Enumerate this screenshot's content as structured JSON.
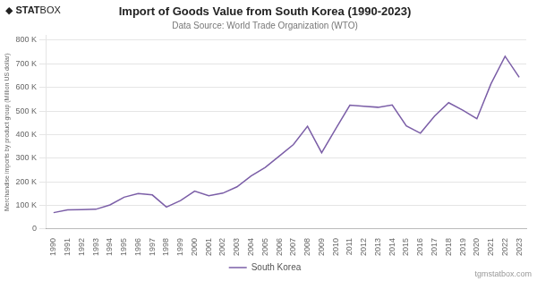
{
  "chart_data": {
    "type": "line",
    "title": "Import of Goods Value from South Korea (1990-2023)",
    "subtitle": "Data Source: World Trade Organization (WTO)",
    "ylabel": "Merchandise imports by product group (Million US dollar)",
    "annotations": [
      "◆",
      "STAT",
      "BOX",
      "tgmstatbox.com"
    ],
    "x": [
      1990,
      1991,
      1992,
      1993,
      1994,
      1995,
      1996,
      1997,
      1998,
      1999,
      2000,
      2001,
      2002,
      2003,
      2004,
      2005,
      2006,
      2007,
      2008,
      2009,
      2010,
      2011,
      2012,
      2013,
      2014,
      2015,
      2016,
      2017,
      2018,
      2019,
      2020,
      2021,
      2022,
      2023
    ],
    "xlim": [
      1989.5,
      2023.5
    ],
    "xticks": [
      1990,
      1991,
      1992,
      1993,
      1994,
      1995,
      1996,
      1997,
      1998,
      1999,
      2000,
      2001,
      2002,
      2003,
      2004,
      2005,
      2006,
      2007,
      2008,
      2009,
      2010,
      2011,
      2012,
      2013,
      2014,
      2015,
      2016,
      2017,
      2018,
      2019,
      2020,
      2021,
      2022,
      2023
    ],
    "series": [
      {
        "name": "South Korea",
        "color": "#7b5ea7",
        "values": [
          69600,
          81400,
          82000,
          83800,
          102300,
          135100,
          150300,
          144600,
          93300,
          120600,
          160500,
          141100,
          152100,
          178800,
          224600,
          261200,
          309300,
          357900,
          435200,
          323100,
          425000,
          524400,
          519600,
          515800,
          525500,
          436800,
          406000,
          478500,
          535200,
          503300,
          467100,
          615100,
          731500,
          642600
        ]
      }
    ],
    "ylim": [
      0,
      820000
    ],
    "yticks": [
      0,
      {
        "value": 100000,
        "label": "100 K"
      },
      {
        "value": 200000,
        "label": "200 K"
      },
      {
        "value": 300000,
        "label": "300 K"
      },
      {
        "value": 400000,
        "label": "400 K"
      },
      {
        "value": 500000,
        "label": "500 K"
      },
      {
        "value": 600000,
        "label": "600 K"
      },
      {
        "value": 700000,
        "label": "700 K"
      },
      {
        "value": 800000,
        "label": "800 K"
      }
    ],
    "grid": true,
    "legend": "bottom"
  }
}
